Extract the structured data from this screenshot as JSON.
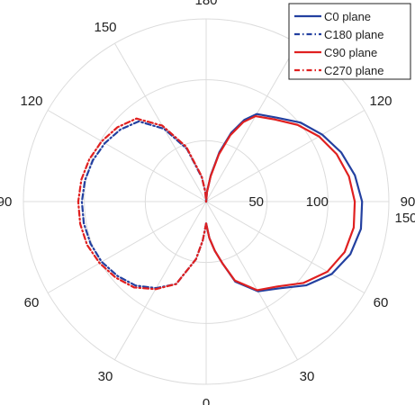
{
  "chart_data": {
    "type": "polar-line",
    "title": "",
    "angle_tick_labels_right": [
      "0",
      "30",
      "60",
      "90",
      "120",
      "150",
      "180"
    ],
    "angle_tick_labels_left": [
      "0",
      "30",
      "60",
      "90",
      "120",
      "150",
      "180"
    ],
    "angle_tick_label_values": [
      0,
      30,
      60,
      90,
      120,
      150,
      180
    ],
    "radial_tick_labels": [
      "50",
      "100",
      "150"
    ],
    "radial_tick_values": [
      50,
      100,
      150
    ],
    "rlim": [
      0,
      150
    ],
    "grid": true,
    "legend": {
      "placement": "top-right",
      "entries": [
        "C0 plane",
        "C180 plane",
        "C90 plane",
        "C270 plane"
      ]
    },
    "series": [
      {
        "name": "C0 plane",
        "side": "right",
        "color": "#2340a0",
        "dash": "solid",
        "angles": [
          0,
          5,
          10,
          15,
          20,
          30,
          40,
          50,
          60,
          70,
          80,
          90,
          100,
          110,
          120,
          130,
          140,
          150,
          155,
          160,
          165,
          170,
          175,
          180
        ],
        "values": [
          18,
          30,
          41,
          53,
          70,
          85,
          93,
          107,
          119,
          126,
          129,
          128,
          124,
          118,
          110,
          101,
          90,
          83,
          74,
          60,
          42,
          22,
          8,
          0
        ]
      },
      {
        "name": "C90 plane",
        "side": "right",
        "color": "#e02020",
        "dash": "solid",
        "angles": [
          0,
          5,
          10,
          15,
          20,
          30,
          40,
          50,
          60,
          70,
          80,
          90,
          100,
          110,
          120,
          130,
          140,
          150,
          155,
          160,
          165,
          170,
          175,
          180
        ],
        "values": [
          18,
          30,
          41,
          53,
          69,
          84,
          91,
          104,
          115,
          121,
          123,
          122,
          119,
          114,
          107,
          98,
          88,
          81,
          72,
          58,
          40,
          21,
          8,
          0
        ]
      },
      {
        "name": "C180 plane",
        "side": "left",
        "color": "#2340a0",
        "dash": "dashdot",
        "angles": [
          0,
          5,
          10,
          20,
          30,
          40,
          50,
          60,
          70,
          80,
          90,
          100,
          110,
          120,
          130,
          140,
          150,
          160,
          170,
          175,
          180
        ],
        "values": [
          18,
          32,
          48,
          72,
          82,
          90,
          95,
          99,
          101,
          102,
          102,
          101,
          99,
          96,
          92,
          86,
          69,
          46,
          20,
          8,
          0
        ]
      },
      {
        "name": "C270 plane",
        "side": "left",
        "color": "#e02020",
        "dash": "dashdot",
        "angles": [
          0,
          5,
          10,
          20,
          30,
          40,
          50,
          60,
          70,
          80,
          90,
          100,
          110,
          120,
          130,
          140,
          150,
          160,
          170,
          175,
          180
        ],
        "values": [
          18,
          32,
          48,
          72,
          83,
          92,
          97,
          101,
          104,
          105,
          105,
          104,
          102,
          99,
          95,
          89,
          72,
          48,
          21,
          8,
          0
        ]
      }
    ]
  }
}
